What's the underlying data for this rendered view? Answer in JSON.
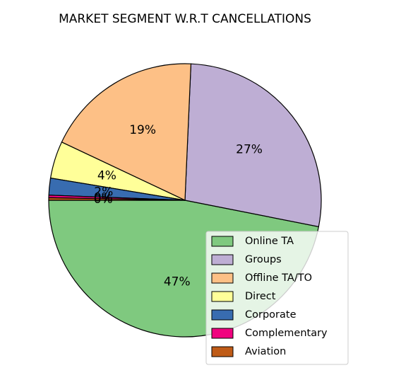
{
  "chart_data": {
    "type": "pie",
    "title": "MARKET SEGMENT W.R.T CANCELLATIONS",
    "slices": [
      {
        "name": "Online TA",
        "value": 46.9,
        "label": "47%",
        "color": "#7fc97f"
      },
      {
        "name": "Groups",
        "value": 27.4,
        "label": "27%",
        "color": "#beaed4"
      },
      {
        "name": "Offline TA/TO",
        "value": 18.7,
        "label": "19%",
        "color": "#fdc086"
      },
      {
        "name": "Direct",
        "value": 4.4,
        "label": "4%",
        "color": "#ffff99"
      },
      {
        "name": "Corporate",
        "value": 2.0,
        "label": "2%",
        "color": "#386cb0"
      },
      {
        "name": "Complementary",
        "value": 0.3,
        "label": "0%",
        "color": "#f0027f"
      },
      {
        "name": "Aviation",
        "value": 0.3,
        "label": "0%",
        "color": "#bf5b17"
      }
    ],
    "start_angle_deg": 180,
    "direction": "counterclockwise",
    "legend_position": "lower right",
    "edge_color": "#000000"
  }
}
